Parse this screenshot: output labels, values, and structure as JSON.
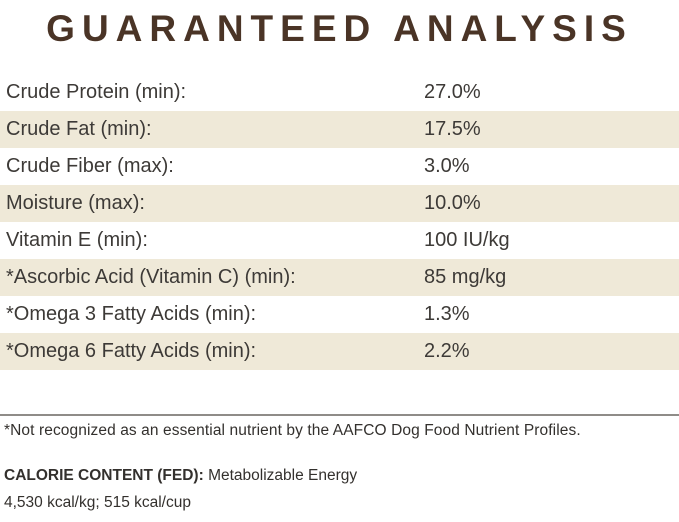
{
  "title": "GUARANTEED ANALYSIS",
  "table": {
    "rows": [
      {
        "label": "Crude Protein (min):",
        "value": "27.0%"
      },
      {
        "label": "Crude Fat (min):",
        "value": "17.5%"
      },
      {
        "label": "Crude Fiber (max):",
        "value": "3.0%"
      },
      {
        "label": "Moisture (max):",
        "value": "10.0%"
      },
      {
        "label": "Vitamin E (min):",
        "value": "100 IU/kg"
      },
      {
        "label": "*Ascorbic Acid (Vitamin C) (min):",
        "value": "85 mg/kg"
      },
      {
        "label": "*Omega 3 Fatty Acids (min):",
        "value": "1.3%"
      },
      {
        "label": "*Omega 6 Fatty Acids (min):",
        "value": "2.2%"
      }
    ]
  },
  "footnote": "*Not recognized as an essential nutrient by the AAFCO Dog Food Nutrient Profiles.",
  "calorie": {
    "heading": "CALORIE CONTENT (FED):",
    "description": "Metabolizable Energy",
    "line2": "4,530 kcal/kg; 515 kcal/cup"
  },
  "colors": {
    "title_brown": "#4a3426",
    "row_shade_cream": "#efe9d8",
    "body_text": "#3d3a37",
    "divider_gray": "#8f8c88"
  }
}
